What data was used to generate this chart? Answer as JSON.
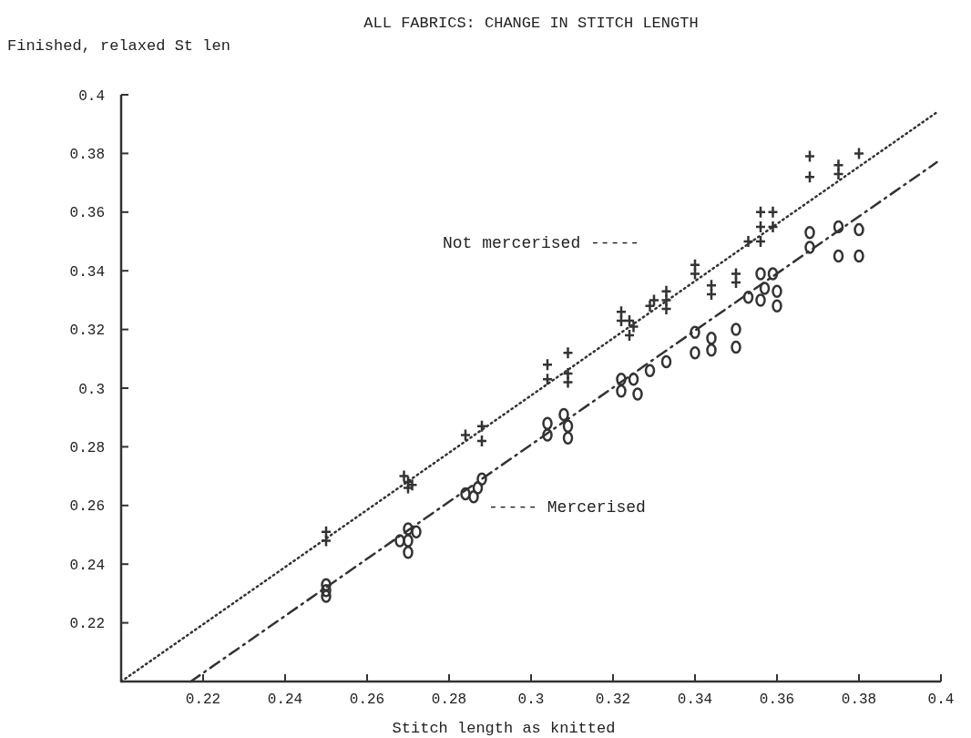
{
  "chart_data": {
    "type": "scatter",
    "title": "ALL FABRICS: CHANGE IN STITCH LENGTH",
    "ylabel": "Finished, relaxed St len",
    "xlabel": "Stitch length as knitted",
    "xlim": [
      0.2,
      0.4
    ],
    "ylim": [
      0.2,
      0.4
    ],
    "xticks": [
      0.22,
      0.24,
      0.26,
      0.28,
      0.3,
      0.32,
      0.34,
      0.36,
      0.38,
      0.4
    ],
    "yticks": [
      0.22,
      0.24,
      0.26,
      0.28,
      0.3,
      0.32,
      0.34,
      0.36,
      0.38,
      0.4
    ],
    "grid": false,
    "annotations": [
      "Not mercerised -----",
      "----- Mercerised"
    ],
    "series": [
      {
        "type": "scatter",
        "marker": "cross",
        "color": "#333333",
        "x": [
          0.25,
          0.25,
          0.269,
          0.27,
          0.271,
          0.27,
          0.284,
          0.288,
          0.288,
          0.304,
          0.304,
          0.309,
          0.309,
          0.309,
          0.322,
          0.322,
          0.324,
          0.325,
          0.324,
          0.329,
          0.33,
          0.333,
          0.333,
          0.333,
          0.34,
          0.34,
          0.344,
          0.344,
          0.35,
          0.35,
          0.353,
          0.356,
          0.356,
          0.359,
          0.356,
          0.359,
          0.368,
          0.368,
          0.375,
          0.375,
          0.38
        ],
        "values": [
          0.251,
          0.248,
          0.27,
          0.268,
          0.267,
          0.266,
          0.284,
          0.287,
          0.282,
          0.308,
          0.303,
          0.312,
          0.305,
          0.302,
          0.326,
          0.323,
          0.323,
          0.321,
          0.318,
          0.328,
          0.33,
          0.333,
          0.33,
          0.327,
          0.342,
          0.339,
          0.335,
          0.332,
          0.339,
          0.336,
          0.35,
          0.35,
          0.36,
          0.36,
          0.355,
          0.355,
          0.379,
          0.372,
          0.376,
          0.373,
          0.38
        ]
      },
      {
        "type": "scatter",
        "marker": "circle",
        "color": "#333333",
        "x": [
          0.25,
          0.25,
          0.25,
          0.27,
          0.27,
          0.27,
          0.272,
          0.268,
          0.284,
          0.287,
          0.288,
          0.286,
          0.304,
          0.304,
          0.308,
          0.309,
          0.309,
          0.322,
          0.322,
          0.325,
          0.326,
          0.329,
          0.333,
          0.34,
          0.34,
          0.344,
          0.344,
          0.35,
          0.35,
          0.356,
          0.359,
          0.353,
          0.356,
          0.36,
          0.36,
          0.357,
          0.368,
          0.368,
          0.375,
          0.375,
          0.38,
          0.38
        ],
        "values": [
          0.233,
          0.231,
          0.229,
          0.252,
          0.248,
          0.244,
          0.251,
          0.248,
          0.264,
          0.266,
          0.269,
          0.263,
          0.288,
          0.284,
          0.291,
          0.287,
          0.283,
          0.303,
          0.299,
          0.303,
          0.298,
          0.306,
          0.309,
          0.319,
          0.312,
          0.317,
          0.313,
          0.32,
          0.314,
          0.339,
          0.339,
          0.331,
          0.33,
          0.333,
          0.328,
          0.334,
          0.353,
          0.348,
          0.355,
          0.345,
          0.354,
          0.345
        ]
      },
      {
        "type": "line",
        "marker": "none",
        "line_style": "dotted",
        "color": "#333333",
        "x": [
          0.2,
          0.399
        ],
        "values": [
          0.2,
          0.394
        ]
      },
      {
        "type": "line",
        "marker": "none",
        "line_style": "dashed",
        "color": "#333333",
        "x": [
          0.217,
          0.399
        ],
        "values": [
          0.2,
          0.377
        ]
      }
    ]
  }
}
